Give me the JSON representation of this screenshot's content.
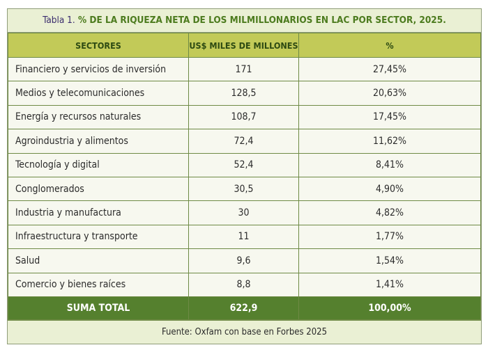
{
  "title": {
    "label": "Tabla 1.",
    "text": " % DE LA RIQUEZA NETA DE LOS MILMILLONARIOS EN LAC POR SECTOR, 2025."
  },
  "headers": [
    "SECTORES",
    "US$ MILES DE MILLONES",
    "%"
  ],
  "rows": [
    [
      "Financiero y servicios de inversión",
      "171",
      "27,45%"
    ],
    [
      "Medios y telecomunicaciones",
      "128,5",
      "20,63%"
    ],
    [
      "Energía y recursos naturales",
      "108,7",
      "17,45%"
    ],
    [
      "Agroindustria y alimentos",
      "72,4",
      "11,62%"
    ],
    [
      "Tecnología y digital",
      "52,4",
      "8,41%"
    ],
    [
      "Conglomerados",
      "30,5",
      "4,90%"
    ],
    [
      "Industria y manufactura",
      "30",
      "4,82%"
    ],
    [
      "Infraestructura y transporte",
      "11",
      "1,77%"
    ],
    [
      "Salud",
      "9,6",
      "1,54%"
    ],
    [
      "Comercio y bienes raíces",
      "8,8",
      "1,41%"
    ]
  ],
  "total": [
    "SUMA TOTAL",
    "622,9",
    "100,00%"
  ],
  "source": "Fuente: Oxfam con base en Forbes 2025"
}
